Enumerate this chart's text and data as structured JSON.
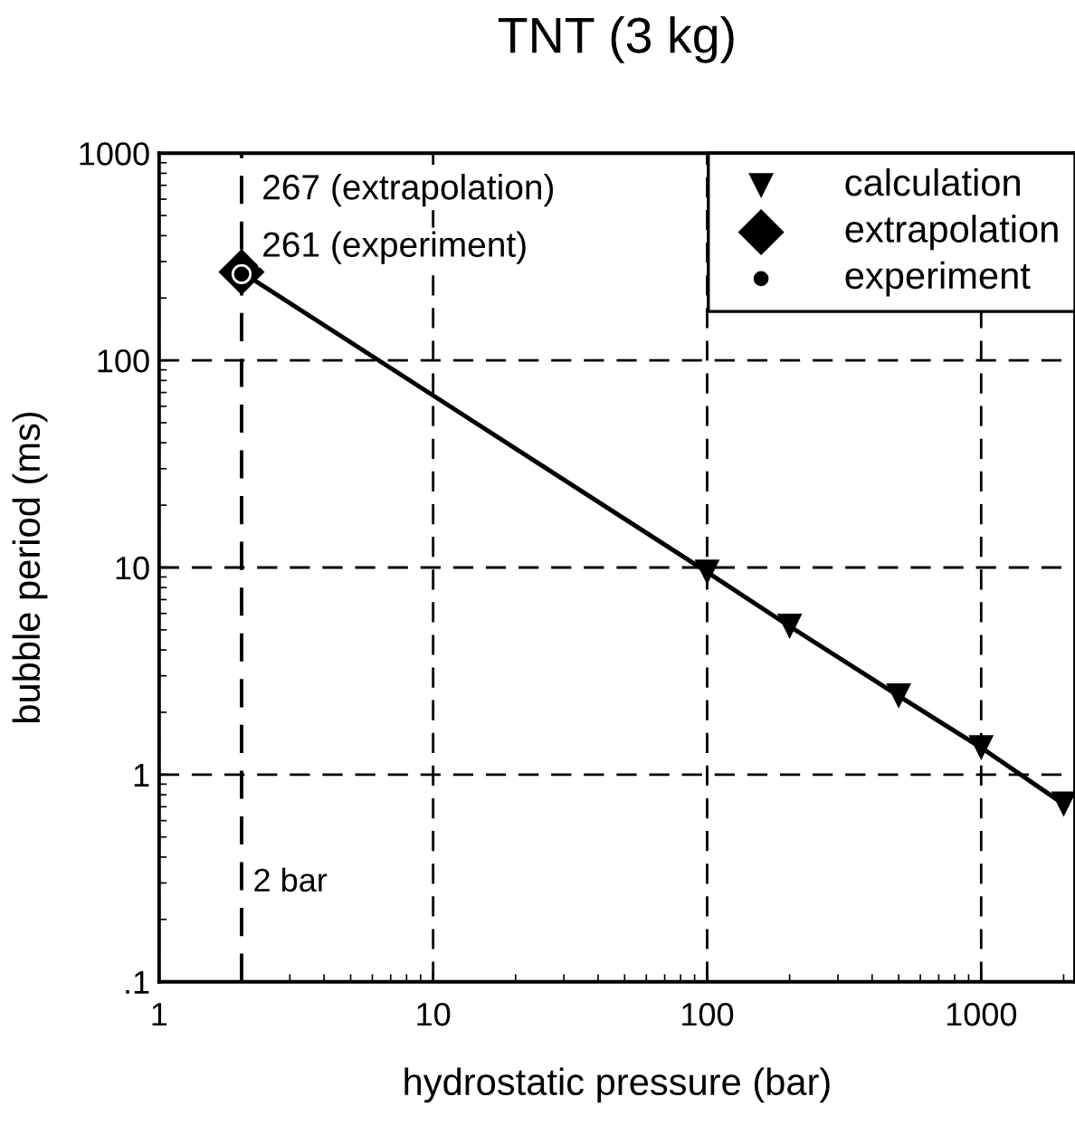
{
  "chart_data": {
    "type": "scatter",
    "title": "TNT (3 kg)",
    "xlabel": "hydrostatic pressure (bar)",
    "ylabel": "bubble period (ms)",
    "log": "xy",
    "xlim": [
      1,
      2200
    ],
    "ylim": [
      0.1,
      1000
    ],
    "xticks": [
      1,
      10,
      100,
      1000
    ],
    "yticks": [
      {
        "value": 0.1,
        "label": ".1"
      },
      1,
      10,
      100,
      1000
    ],
    "grid": true,
    "legend": "top right",
    "series": [
      {
        "type": "line",
        "color": "#000000",
        "marker": "none",
        "line_style": "solid",
        "x": [
          2,
          100,
          200,
          500,
          1000,
          2000
        ],
        "values": [
          267,
          9.5,
          5.2,
          2.4,
          1.35,
          0.72
        ]
      },
      {
        "name": "calculation",
        "color": "#000000",
        "marker": "triangle",
        "x": [
          100,
          200,
          500,
          1000,
          2000
        ],
        "values": [
          9.5,
          5.2,
          2.4,
          1.35,
          0.72
        ]
      },
      {
        "name": "extrapolation",
        "color": "#000000",
        "marker": "diamond",
        "x": [
          2
        ],
        "values": [
          267
        ]
      },
      {
        "name": "experiment",
        "color": "#000000",
        "marker": "circle",
        "x": [
          2
        ],
        "values": [
          261
        ]
      }
    ],
    "ref_lines": [
      {
        "axis": "x",
        "value": 2,
        "label": "2 bar",
        "color": "#000000",
        "line_style": "dashed"
      }
    ],
    "annotations": [
      {
        "text": "267 (extrapolation)",
        "x": 2,
        "y": 267
      },
      {
        "text": "261 (experiment)",
        "x": 2,
        "y": 261
      }
    ]
  }
}
